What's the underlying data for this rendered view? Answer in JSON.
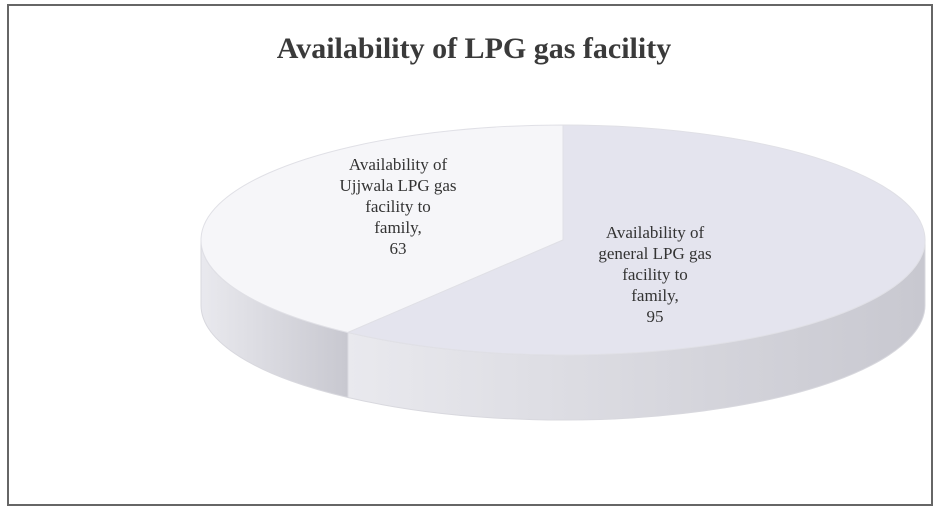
{
  "chart_data": {
    "type": "pie",
    "title": "Availability of  LPG gas facility",
    "categories": [
      "Availability of Ujjwala LPG gas facility to family,",
      "Availability of general LPG gas facility to family,"
    ],
    "values": [
      63,
      95
    ],
    "colors": [
      "#f6f6f9",
      "#e4e4ee"
    ],
    "three_d": true
  }
}
